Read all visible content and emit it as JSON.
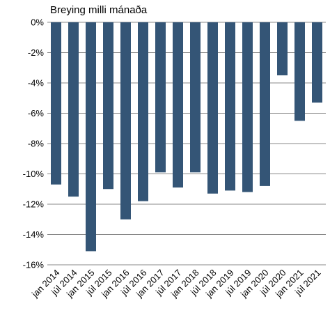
{
  "chart_data": {
    "type": "bar",
    "title": "Breying milli mánaða",
    "xlabel": "",
    "ylabel": "",
    "categories": [
      "jan 2014",
      "júl 2014",
      "jan 2015",
      "júl 2015",
      "jan 2016",
      "júl 2016",
      "jan 2017",
      "júl 2017",
      "jan 2018",
      "júl 2018",
      "jan 2019",
      "júl 2019",
      "jan 2020",
      "júl 2020",
      "jan 2021",
      "júl 2021"
    ],
    "values": [
      -10.7,
      -11.5,
      -15.1,
      -11.0,
      -13.0,
      -11.8,
      -9.9,
      -10.9,
      -9.9,
      -11.3,
      -11.1,
      -11.2,
      -10.8,
      -3.5,
      -6.5,
      -5.3
    ],
    "ylim": [
      -16,
      0
    ],
    "yticks": [
      0,
      -2,
      -4,
      -6,
      -8,
      -10,
      -12,
      -14,
      -16
    ],
    "tick_suffix": "%",
    "bar_color": "#345576",
    "grid": true,
    "legend": "none"
  }
}
